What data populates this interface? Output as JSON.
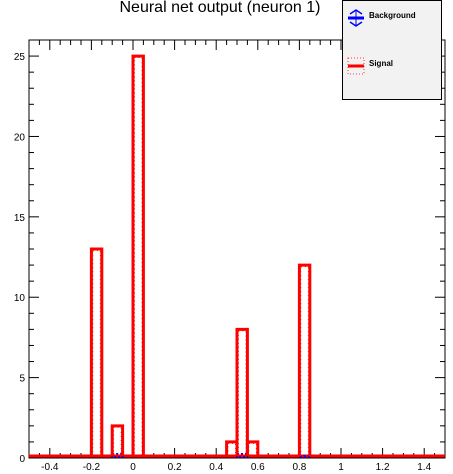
{
  "chart_data": {
    "type": "bar",
    "title": "Neural net output (neuron 1)",
    "xlim": [
      -0.5,
      1.5
    ],
    "ylim": [
      0,
      26
    ],
    "bin_width": 0.05,
    "x_ticks": [
      -0.4,
      -0.2,
      0,
      0.2,
      0.4,
      0.6,
      0.8,
      1,
      1.2,
      1.4
    ],
    "x_tick_labels": [
      "-0.4",
      "-0.2",
      "0",
      "0.2",
      "0.4",
      "0.6",
      "0.8",
      "1",
      "1.2",
      "1.4"
    ],
    "y_ticks": [
      0,
      5,
      10,
      15,
      20,
      25
    ],
    "y_tick_labels": [
      "0",
      "5",
      "10",
      "15",
      "20",
      "25"
    ],
    "legend_position": "top-right",
    "series": [
      {
        "name": "Background",
        "color": "#0000ff",
        "bins": [
          {
            "x0": -0.1,
            "x1": -0.05,
            "value": 0.2
          },
          {
            "x0": 0.5,
            "x1": 0.55,
            "value": 0.2
          },
          {
            "x0": 0.8,
            "x1": 0.85,
            "value": 0.1
          }
        ]
      },
      {
        "name": "Signal",
        "color": "#ff0000",
        "bins": [
          {
            "x0": -0.2,
            "x1": -0.15,
            "value": 13
          },
          {
            "x0": -0.15,
            "x1": -0.1,
            "value": 0
          },
          {
            "x0": -0.1,
            "x1": -0.05,
            "value": 2
          },
          {
            "x0": -0.05,
            "x1": 0.0,
            "value": 0
          },
          {
            "x0": 0.0,
            "x1": 0.05,
            "value": 25
          },
          {
            "x0": 0.45,
            "x1": 0.5,
            "value": 1
          },
          {
            "x0": 0.5,
            "x1": 0.55,
            "value": 8
          },
          {
            "x0": 0.55,
            "x1": 0.6,
            "value": 1
          },
          {
            "x0": 0.8,
            "x1": 0.85,
            "value": 12
          }
        ]
      }
    ]
  }
}
